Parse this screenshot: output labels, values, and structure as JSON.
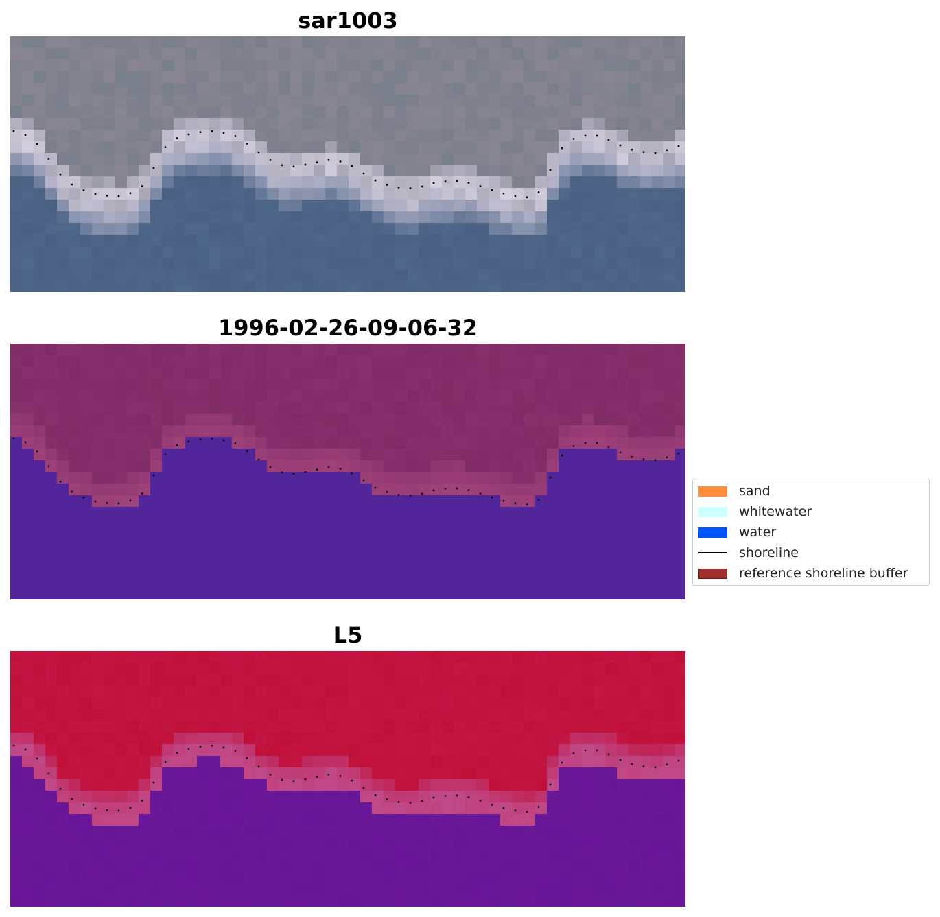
{
  "panels": [
    {
      "title": "sar1003",
      "style": "rgb"
    },
    {
      "title": "1996-02-26-09-06-32",
      "style": "classified"
    },
    {
      "title": "L5",
      "style": "index"
    }
  ],
  "legend": {
    "items": [
      {
        "label": "sand",
        "kind": "patch",
        "color": "#ff8c3a"
      },
      {
        "label": "whitewater",
        "kind": "patch",
        "color": "#ccffff"
      },
      {
        "label": "water",
        "kind": "patch",
        "color": "#0055ff"
      },
      {
        "label": "shoreline",
        "kind": "line",
        "color": "#000000"
      },
      {
        "label": "reference shoreline buffer",
        "kind": "patch",
        "color": "#a03030",
        "edge": "#7a1010"
      }
    ]
  },
  "colors": {
    "land_rgb": "#7a7f8c",
    "water_rgb": "#4e6688",
    "surf_rgb": "#d8d0e0",
    "land_class": "#86306c",
    "water_class": "#53259a",
    "buffer_class": "#a0427a",
    "land_index": "#c0103a",
    "water_index": "#6a1898",
    "buffer_index": "#c04a8a"
  }
}
